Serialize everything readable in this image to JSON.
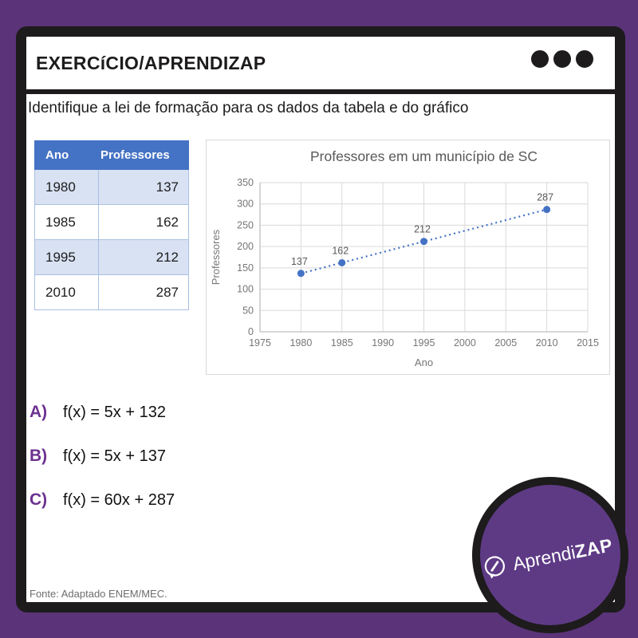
{
  "page": {
    "background_purple": "#5a3379",
    "frame_black": "#1d1b1c"
  },
  "header": {
    "title": "EXERCíCIO/APRENDIZAP",
    "menu_icon": "three-ring-dots"
  },
  "question": "Identifique a lei de formação para os dados da tabela e do gráfico",
  "table": {
    "header_bg": "#4472c4",
    "alt_row_bg": "#d9e2f3",
    "headers": [
      "Ano",
      "Professores"
    ],
    "rows": [
      [
        "1980",
        "137"
      ],
      [
        "1985",
        "162"
      ],
      [
        "1995",
        "212"
      ],
      [
        "2010",
        "287"
      ]
    ]
  },
  "chart_data": {
    "type": "line",
    "title": "Professores em um município de SC",
    "xlabel": "Ano",
    "ylabel": "Professores",
    "x": [
      1980,
      1985,
      1995,
      2010
    ],
    "y": [
      137,
      162,
      212,
      287
    ],
    "data_labels": [
      "137",
      "162",
      "212",
      "287"
    ],
    "xlim": [
      1975,
      2015
    ],
    "ylim": [
      0,
      350
    ],
    "x_ticks": [
      1975,
      1980,
      1985,
      1990,
      1995,
      2000,
      2005,
      2010,
      2015
    ],
    "y_ticks": [
      0,
      50,
      100,
      150,
      200,
      250,
      300,
      350
    ],
    "grid": true,
    "legend": "none",
    "line_style": "dotted",
    "marker": "circle",
    "series_color": "#4472c4",
    "grid_color": "#d9d9d9",
    "axis_color": "#bfbfbf",
    "title_color": "#595959",
    "tick_color": "#767676"
  },
  "options": [
    {
      "label": "A)",
      "text": "f(x) = 5x + 132"
    },
    {
      "label": "B)",
      "text": "f(x) = 5x + 137"
    },
    {
      "label": "C)",
      "text": "f(x) = 60x + 287"
    }
  ],
  "footer": {
    "source": "Fonte: Adaptado ENEM/MEC."
  },
  "logo": {
    "brand_regular": "Aprendi",
    "brand_bold": "ZAP",
    "icon": "pencil-speech-bubble",
    "circle_color": "#5e3a85"
  }
}
